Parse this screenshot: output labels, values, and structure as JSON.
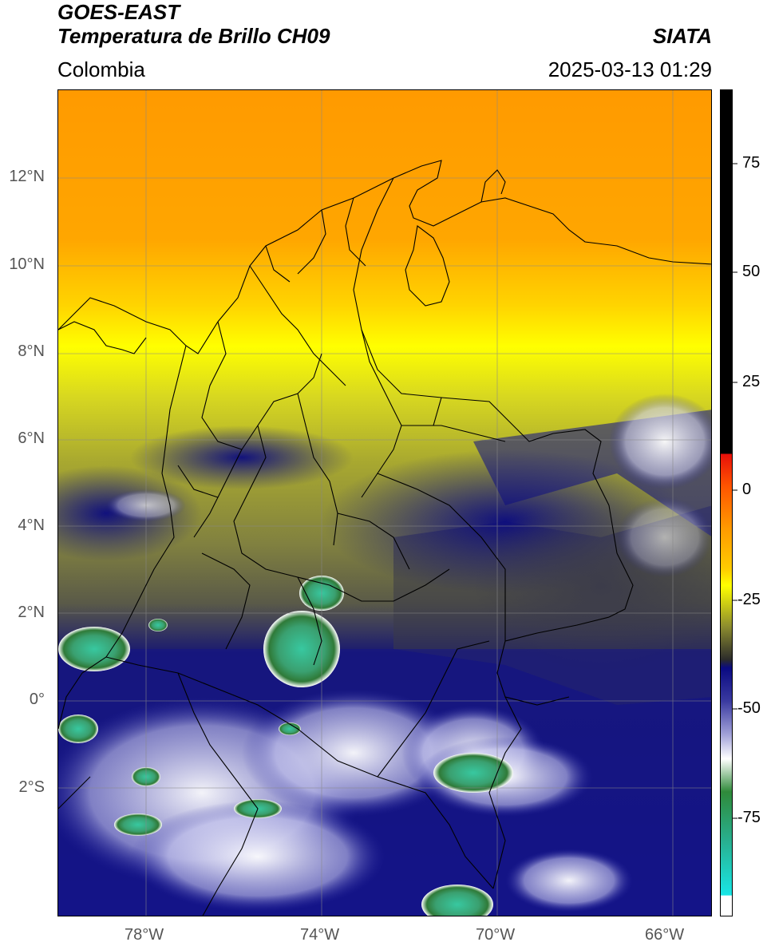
{
  "header": {
    "satellite": "GOES-EAST",
    "product": "Temperatura de Brillo CH09",
    "region": "Colombia",
    "agency": "SIATA",
    "datetime": "2025-03-13 01:29"
  },
  "map": {
    "lat_ticks": [
      "12°N",
      "10°N",
      "8°N",
      "6°N",
      "4°N",
      "2°N",
      "0°",
      "2°S"
    ],
    "lon_ticks": [
      "78°W",
      "74°W",
      "70°W",
      "66°W"
    ],
    "extent": {
      "lon_min": -80,
      "lon_max": -65.1,
      "lat_min": -5.2,
      "lat_max": 14
    }
  },
  "colorbar": {
    "tick_labels": [
      "75",
      "50",
      "25",
      "0",
      "-25",
      "-50",
      "-75"
    ],
    "range": [
      -95,
      90
    ],
    "colors": {
      "black": "#000000",
      "red": "#e8100a",
      "orange": "#ff9900",
      "yellow": "#ffff00",
      "olive": "#8c8c2e",
      "darkgray": "#2b2b2b",
      "navy": "#0a0a82",
      "white": "#ffffff",
      "green": "#2f8a3a",
      "cyan": "#19e6e6"
    }
  }
}
